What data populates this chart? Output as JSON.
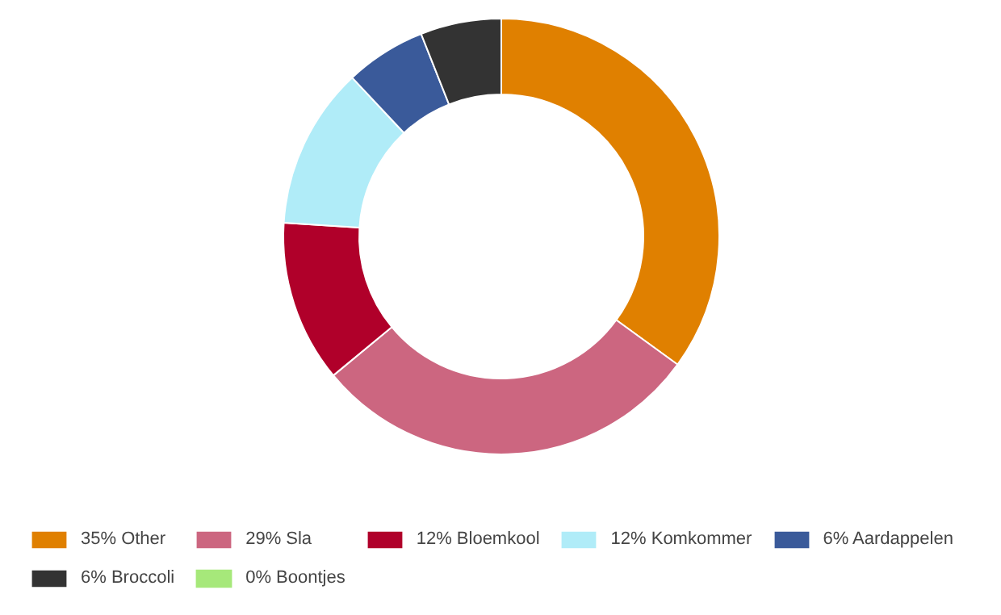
{
  "chart_data": {
    "type": "donut",
    "categories": [
      "Other",
      "Sla",
      "Bloemkool",
      "Komkommer",
      "Aardappelen",
      "Broccoli",
      "Boontjes"
    ],
    "values": [
      35,
      29,
      12,
      12,
      6,
      6,
      0
    ],
    "value_labels": [
      "35%",
      "29%",
      "12%",
      "12%",
      "6%",
      "6%",
      "0%"
    ],
    "colors": [
      "#e08000",
      "#cc6680",
      "#b0002a",
      "#b0ecf8",
      "#3a5a9a",
      "#333333",
      "#a6e87a"
    ],
    "legend": "bottom"
  }
}
